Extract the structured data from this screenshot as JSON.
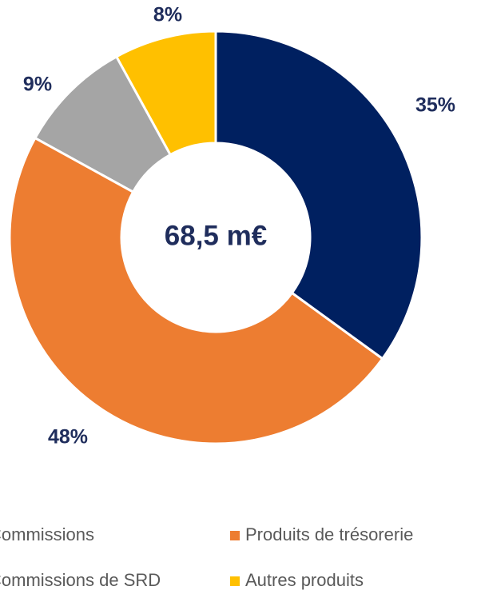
{
  "chart_data": {
    "type": "pie",
    "donut": true,
    "center_label": "68,5 m€",
    "categories": [
      "Commissions",
      "Produits de trésorerie",
      "Commissions de SRD",
      "Autres produits"
    ],
    "slice_order": [
      0,
      1,
      2,
      3
    ],
    "values": [
      35,
      48,
      9,
      8
    ],
    "value_labels": [
      "35%",
      "48%",
      "9%",
      "8%"
    ],
    "colors": [
      "#002060",
      "#ED7D31",
      "#A5A5A5",
      "#FFC000"
    ],
    "legend": "bottom"
  }
}
